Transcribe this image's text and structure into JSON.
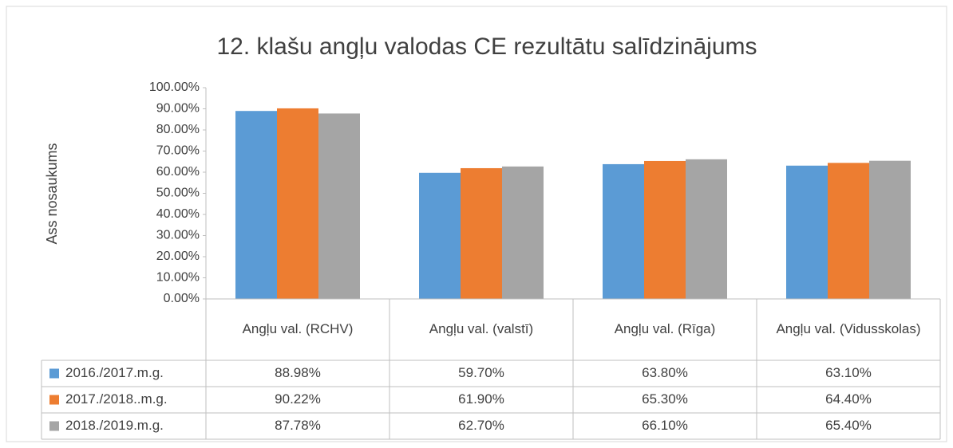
{
  "chart_data": {
    "type": "bar",
    "title": "12. klašu angļu valodas CE rezultātu salīdzinājums",
    "y_label": "Ass nosaukums",
    "categories": [
      "Angļu val. (RCHV)",
      "Angļu val. (valstī)",
      "Angļu val. (Rīga)",
      "Angļu val. (Vidusskolas)"
    ],
    "series": [
      {
        "name": "2016./2017.m.g.",
        "color": "#5b9bd5",
        "values": [
          88.98,
          59.7,
          63.8,
          63.1
        ],
        "value_labels": [
          "88.98%",
          "59.70%",
          "63.80%",
          "63.10%"
        ]
      },
      {
        "name": "2017./2018..m.g.",
        "color": "#ed7d31",
        "values": [
          90.22,
          61.9,
          65.3,
          64.4
        ],
        "value_labels": [
          "90.22%",
          "61.90%",
          "65.30%",
          "64.40%"
        ]
      },
      {
        "name": "2018./2019.m.g.",
        "color": "#a5a5a5",
        "values": [
          87.78,
          62.7,
          66.1,
          65.4
        ],
        "value_labels": [
          "87.78%",
          "62.70%",
          "66.10%",
          "65.40%"
        ]
      }
    ],
    "ylim": [
      0,
      100
    ],
    "yticks": [
      {
        "value": 0,
        "label": "0.00%"
      },
      {
        "value": 10,
        "label": "10.00%"
      },
      {
        "value": 20,
        "label": "20.00%"
      },
      {
        "value": 30,
        "label": "30.00%"
      },
      {
        "value": 40,
        "label": "40.00%"
      },
      {
        "value": 50,
        "label": "50.00%"
      },
      {
        "value": 60,
        "label": "60.00%"
      },
      {
        "value": 70,
        "label": "70.00%"
      },
      {
        "value": 80,
        "label": "80.00%"
      },
      {
        "value": 90,
        "label": "90.00%"
      },
      {
        "value": 100,
        "label": "100.00%"
      }
    ]
  }
}
